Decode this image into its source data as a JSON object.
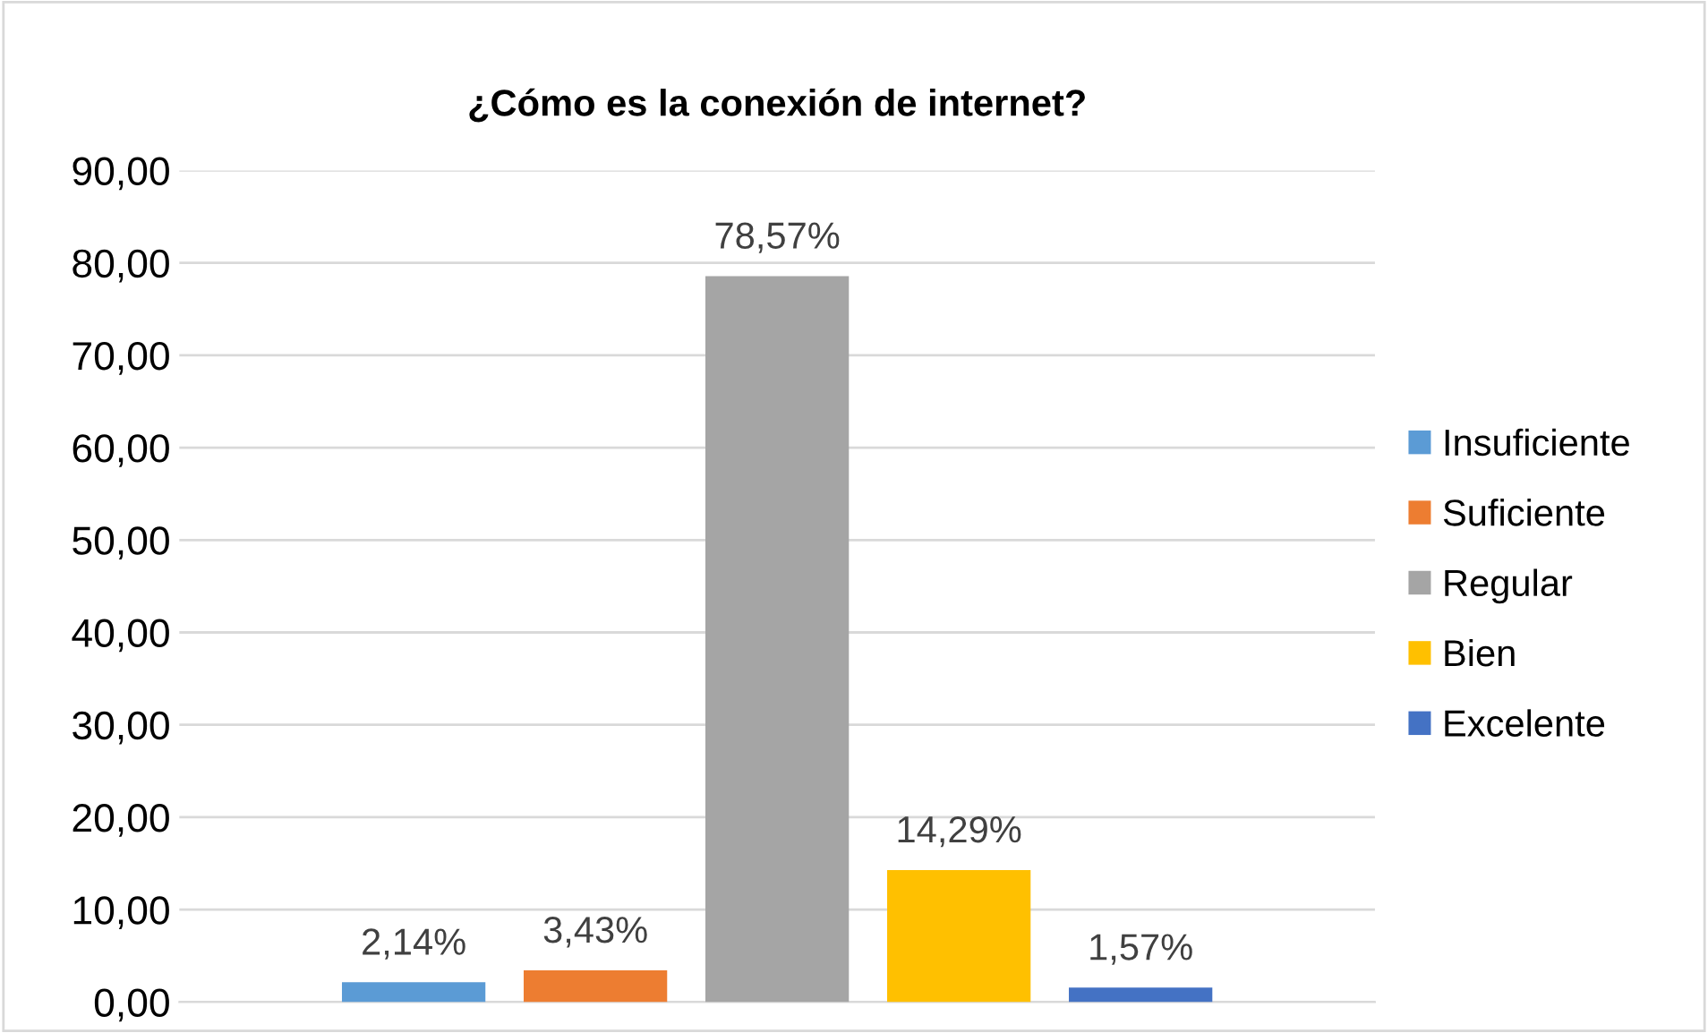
{
  "chart_data": {
    "type": "bar",
    "title": "¿Cómo es la conexión de internet?",
    "categories": [
      null
    ],
    "series": [
      {
        "name": "Insuficiente",
        "color": "#5b9bd5",
        "values": [
          2.14
        ],
        "value_labels": [
          "2,14%"
        ]
      },
      {
        "name": "Suficiente",
        "color": "#ed7d31",
        "values": [
          3.43
        ],
        "value_labels": [
          "3,43%"
        ]
      },
      {
        "name": "Regular",
        "color": "#a5a5a5",
        "values": [
          78.57
        ],
        "value_labels": [
          "78,57%"
        ]
      },
      {
        "name": "Bien",
        "color": "#ffc000",
        "values": [
          14.29
        ],
        "value_labels": [
          "14,29%"
        ]
      },
      {
        "name": "Excelente",
        "color": "#4472c4",
        "values": [
          1.57
        ],
        "value_labels": [
          "1,57%"
        ]
      }
    ],
    "ylim": [
      0,
      90
    ],
    "yticks": [
      {
        "value": 0,
        "label": "0,00"
      },
      {
        "value": 10,
        "label": "10,00"
      },
      {
        "value": 20,
        "label": "20,00"
      },
      {
        "value": 30,
        "label": "30,00"
      },
      {
        "value": 40,
        "label": "40,00"
      },
      {
        "value": 50,
        "label": "50,00"
      },
      {
        "value": 60,
        "label": "60,00"
      },
      {
        "value": 70,
        "label": "70,00"
      },
      {
        "value": 80,
        "label": "80,00"
      },
      {
        "value": 90,
        "label": "90,00"
      }
    ],
    "grid": "y",
    "legend": "right"
  }
}
